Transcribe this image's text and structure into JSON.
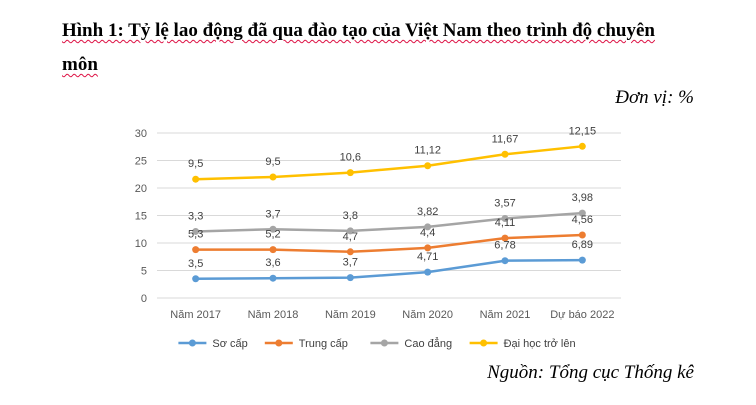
{
  "figure": {
    "title_line1": "Hình 1: Tỷ lệ lao động đã qua đào tạo của Việt Nam theo trình độ chuyên",
    "title_line2": "môn",
    "unit": "Đơn vị: %",
    "source": "Nguồn: Tổng cục Thống kê"
  },
  "chart_data": {
    "type": "line",
    "categories": [
      "Năm 2017",
      "Năm 2018",
      "Năm 2019",
      "Năm 2020",
      "Năm 2021",
      "Dự báo 2022"
    ],
    "ylim": [
      0,
      30
    ],
    "yticks": [
      0,
      5,
      10,
      15,
      20,
      25,
      30
    ],
    "grid": true,
    "legend_position": "bottom",
    "series": [
      {
        "name": "Sơ cấp",
        "color": "#5B9BD5",
        "values": [
          3.5,
          3.6,
          3.7,
          4.71,
          6.78,
          6.89
        ],
        "labels": [
          "3,5",
          "3,6",
          "3,7",
          "4,71",
          "6,78",
          "6,89"
        ]
      },
      {
        "name": "Trung cấp",
        "color": "#ED7D31",
        "values": [
          5.3,
          5.2,
          4.7,
          4.4,
          4.11,
          4.56
        ],
        "labels": [
          "5,3",
          "5,2",
          "4,7",
          "4,4",
          "4,11",
          "4,56"
        ]
      },
      {
        "name": "Cao đẳng",
        "color": "#A5A5A5",
        "values": [
          3.3,
          3.7,
          3.8,
          3.82,
          3.57,
          3.98
        ],
        "labels": [
          "3,3",
          "3,7",
          "3,8",
          "3,82",
          "3,57",
          "3,98"
        ]
      },
      {
        "name": "Đại học trở lên",
        "color": "#FFC000",
        "values": [
          9.5,
          9.5,
          10.6,
          11.12,
          11.67,
          12.15
        ],
        "labels": [
          "9,5",
          "9,5",
          "10,6",
          "11,12",
          "11,67",
          "12,15"
        ]
      }
    ]
  }
}
